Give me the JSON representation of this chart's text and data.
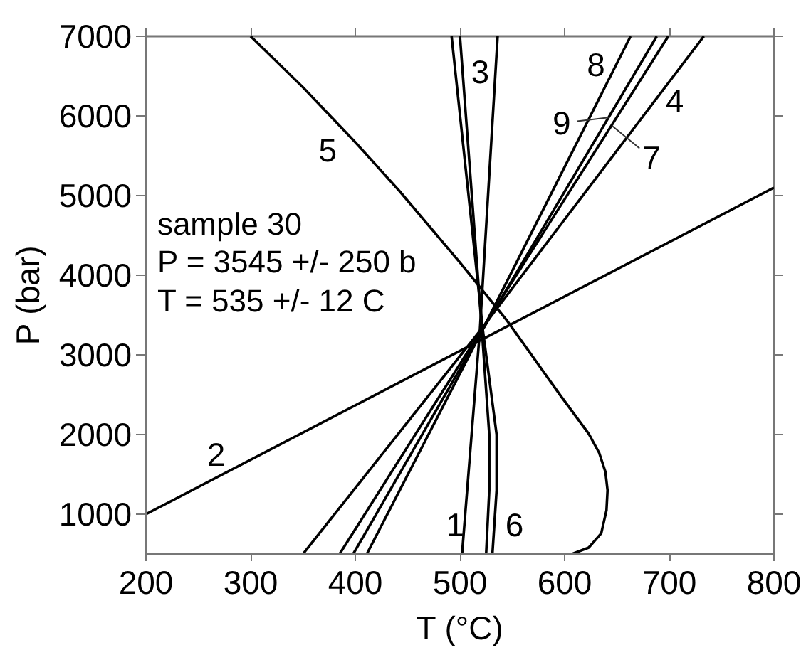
{
  "chart_data": {
    "type": "line",
    "xlabel": "T (°C)",
    "ylabel": "P (bar)",
    "xlim": [
      200,
      800
    ],
    "ylim": [
      500,
      7000
    ],
    "xticks": [
      200,
      300,
      400,
      500,
      600,
      700,
      800
    ],
    "yticks": [
      1000,
      2000,
      3000,
      4000,
      5000,
      6000,
      7000
    ],
    "series": [
      {
        "color": "#000000",
        "x": [
          502,
          519,
          536
        ],
        "values": [
          500,
          3300,
          7000
        ]
      },
      {
        "color": "#000000",
        "x": [
          200,
          800
        ],
        "values": [
          1000,
          5100
        ]
      },
      {
        "color": "#000000",
        "x": [
          525,
          528,
          528,
          521,
          500
        ],
        "values": [
          500,
          1300,
          2000,
          3300,
          7000
        ]
      },
      {
        "color": "#000000",
        "x": [
          350,
          519,
          733
        ],
        "values": [
          500,
          3300,
          7000
        ]
      },
      {
        "color": "#000000",
        "x": [
          300,
          350,
          400,
          442,
          500,
          545,
          596,
          623,
          633,
          639,
          641,
          640,
          635,
          623,
          607
        ],
        "values": [
          7000,
          6360,
          5670,
          5060,
          4160,
          3430,
          2490,
          2010,
          1770,
          1530,
          1300,
          1050,
          760,
          580,
          500
        ]
      },
      {
        "color": "#000000",
        "x": [
          531,
          535,
          535,
          522,
          492
        ],
        "values": [
          500,
          1300,
          2000,
          3300,
          7000
        ]
      },
      {
        "color": "#000000",
        "x": [
          385,
          520,
          699
        ],
        "values": [
          500,
          3300,
          7000
        ]
      },
      {
        "color": "#000000",
        "x": [
          411,
          521,
          663
        ],
        "values": [
          500,
          3300,
          7000
        ]
      },
      {
        "color": "#000000",
        "x": [
          398,
          521,
          688
        ],
        "values": [
          500,
          3300,
          7000
        ]
      }
    ],
    "annotations": [
      "sample 30",
      "P = 3545 +/- 250 b",
      "T = 535 +/- 12 C",
      {
        "text": "1",
        "x": 505,
        "y": 870
      },
      {
        "text": "2",
        "x": 267,
        "y": 1460
      },
      {
        "text": "3",
        "x": 503,
        "y": 6550
      },
      {
        "text": "4",
        "x": 686,
        "y": 6190
      },
      {
        "text": "5",
        "x": 405,
        "y": 5570
      },
      {
        "text": "6",
        "x": 533,
        "y": 870
      },
      {
        "text": "7",
        "x": 645,
        "y": 5880
      },
      {
        "text": "8",
        "x": 649,
        "y": 6640
      },
      {
        "text": "9",
        "x": 642,
        "y": 5980
      }
    ]
  }
}
